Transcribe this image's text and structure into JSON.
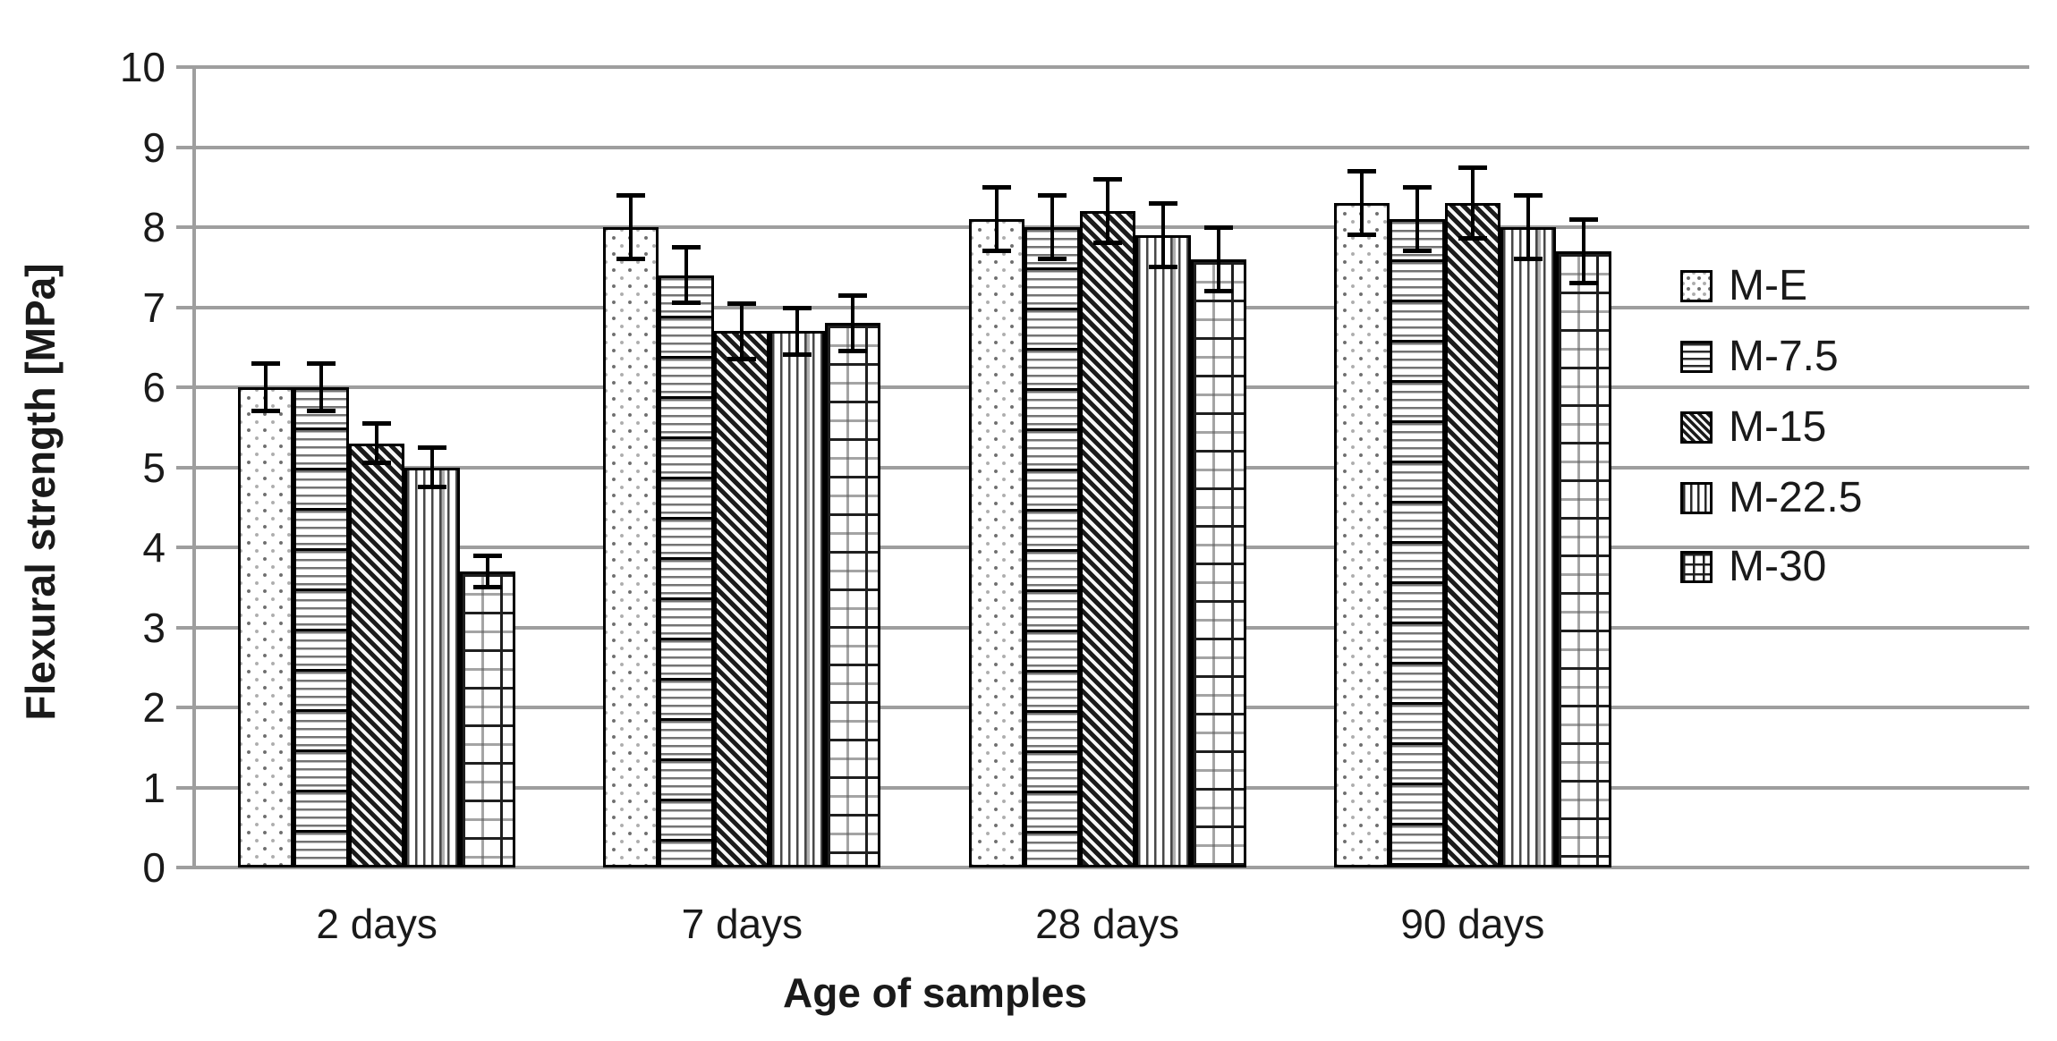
{
  "chart_data": {
    "type": "bar",
    "title": "",
    "xlabel": "Age of samples",
    "ylabel": "Flexural strength [MPa]",
    "ylim": [
      0,
      10
    ],
    "ytick_step": 1,
    "yticks": [
      "0",
      "1",
      "2",
      "3",
      "4",
      "5",
      "6",
      "7",
      "8",
      "9",
      "10"
    ],
    "categories": [
      "2 days",
      "7 days",
      "28 days",
      "90 days"
    ],
    "grid": "horizontal-major",
    "legend_position": "right",
    "error_bars": true,
    "series": [
      {
        "name": "M-E",
        "pattern": "dots",
        "values": [
          6.0,
          8.0,
          8.1,
          8.3
        ],
        "errors": [
          0.3,
          0.4,
          0.4,
          0.4
        ]
      },
      {
        "name": "M-7.5",
        "pattern": "hlines",
        "values": [
          6.0,
          7.4,
          8.0,
          8.1
        ],
        "errors": [
          0.3,
          0.35,
          0.4,
          0.4
        ]
      },
      {
        "name": "M-15",
        "pattern": "diag",
        "values": [
          5.3,
          6.7,
          8.2,
          8.3
        ],
        "errors": [
          0.25,
          0.35,
          0.4,
          0.45
        ]
      },
      {
        "name": "M-22.5",
        "pattern": "vlines",
        "values": [
          5.0,
          6.7,
          7.9,
          8.0
        ],
        "errors": [
          0.25,
          0.3,
          0.4,
          0.4
        ]
      },
      {
        "name": "M-30",
        "pattern": "grid",
        "values": [
          3.7,
          6.8,
          7.6,
          7.7
        ],
        "errors": [
          0.2,
          0.35,
          0.4,
          0.4
        ]
      }
    ],
    "colors": {
      "gridline": "#9e9e9e",
      "bar_border": "#000000",
      "error_bar": "#000000",
      "text": "#1a1a1a",
      "background": "#ffffff"
    }
  }
}
